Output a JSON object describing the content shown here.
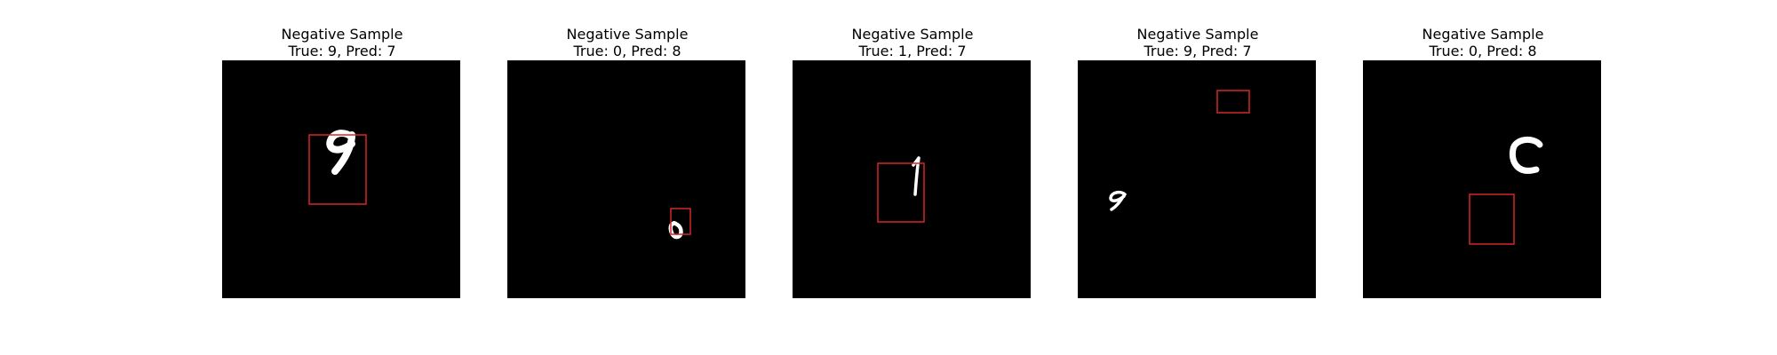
{
  "chart_data": [
    {
      "type": "image",
      "title": "Negative Sample",
      "subtitle": "True: 9, Pred: 7",
      "true_label": 9,
      "pred_label": 7,
      "digit": "9",
      "box_color": "#d62728"
    },
    {
      "type": "image",
      "title": "Negative Sample",
      "subtitle": "True: 0, Pred: 8",
      "true_label": 0,
      "pred_label": 8,
      "digit": "0",
      "box_color": "#d62728"
    },
    {
      "type": "image",
      "title": "Negative Sample",
      "subtitle": "True: 1, Pred: 7",
      "true_label": 1,
      "pred_label": 7,
      "digit": "1",
      "box_color": "#d62728"
    },
    {
      "type": "image",
      "title": "Negative Sample",
      "subtitle": "True: 9, Pred: 7",
      "true_label": 9,
      "pred_label": 7,
      "digit": "9",
      "box_color": "#d62728"
    },
    {
      "type": "image",
      "title": "Negative Sample",
      "subtitle": "True: 0, Pred: 8",
      "true_label": 0,
      "pred_label": 8,
      "digit": "0",
      "box_color": "#d62728"
    }
  ],
  "colors": {
    "background": "#ffffff",
    "image_background": "#000000",
    "digit_stroke": "#ffffff",
    "bounding_box": "#d62728"
  }
}
